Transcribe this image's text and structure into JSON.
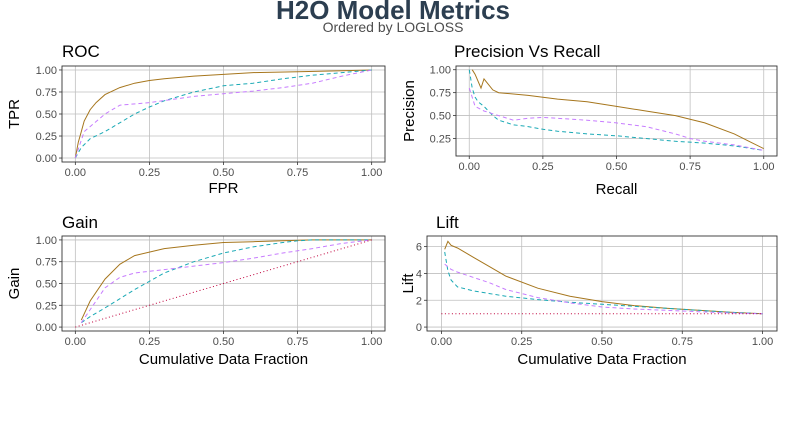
{
  "title": "H2O Model Metrics",
  "subtitle": "Ordered by LOGLOSS",
  "colors": {
    "model_1": "#a6761d",
    "model_2": "#1aa9b5",
    "model_3": "#c77cff",
    "baseline": "#c0003c",
    "title": "#2c3e50"
  },
  "chart_data": [
    {
      "type": "line",
      "title": "ROC",
      "xlabel": "FPR",
      "ylabel": "TPR",
      "xlim": [
        0,
        1
      ],
      "ylim": [
        0,
        1
      ],
      "x_ticks": [
        "0.00",
        "0.25",
        "0.50",
        "0.75",
        "1.00"
      ],
      "y_ticks": [
        "0.00",
        "0.25",
        "0.50",
        "0.75",
        "1.00"
      ],
      "grid": true,
      "series": [
        {
          "style": "solid",
          "color": "#a6761d",
          "x": [
            0,
            0.01,
            0.02,
            0.03,
            0.05,
            0.07,
            0.1,
            0.15,
            0.2,
            0.25,
            0.3,
            0.4,
            0.5,
            0.6,
            0.75,
            0.9,
            1.0
          ],
          "y": [
            0,
            0.18,
            0.3,
            0.42,
            0.55,
            0.63,
            0.72,
            0.8,
            0.85,
            0.88,
            0.9,
            0.93,
            0.95,
            0.97,
            0.98,
            0.99,
            1.0
          ]
        },
        {
          "style": "dashed",
          "color": "#1aa9b5",
          "x": [
            0,
            0.02,
            0.05,
            0.1,
            0.15,
            0.2,
            0.25,
            0.3,
            0.35,
            0.4,
            0.5,
            0.6,
            0.7,
            0.8,
            0.9,
            1.0
          ],
          "y": [
            0,
            0.12,
            0.22,
            0.3,
            0.4,
            0.5,
            0.58,
            0.65,
            0.7,
            0.75,
            0.82,
            0.85,
            0.9,
            0.94,
            0.97,
            1.0
          ]
        },
        {
          "style": "dashed",
          "color": "#c77cff",
          "x": [
            0,
            0.03,
            0.1,
            0.15,
            0.25,
            0.4,
            0.5,
            0.6,
            0.7,
            0.8,
            0.9,
            1.0
          ],
          "y": [
            0,
            0.3,
            0.5,
            0.6,
            0.63,
            0.7,
            0.73,
            0.76,
            0.8,
            0.85,
            0.93,
            1.0
          ]
        }
      ]
    },
    {
      "type": "line",
      "title": "Precision Vs Recall",
      "xlabel": "Recall",
      "ylabel": "Precision",
      "xlim": [
        0,
        1
      ],
      "ylim": [
        0.1,
        1
      ],
      "x_ticks": [
        "0.00",
        "0.25",
        "0.50",
        "0.75",
        "1.00"
      ],
      "y_ticks": [
        "0.25",
        "0.50",
        "0.75",
        "1.00"
      ],
      "y_tick_values": [
        0.25,
        0.5,
        0.75,
        1.0
      ],
      "grid": true,
      "series": [
        {
          "style": "solid",
          "color": "#a6761d",
          "x": [
            0.01,
            0.02,
            0.04,
            0.05,
            0.08,
            0.1,
            0.2,
            0.3,
            0.4,
            0.5,
            0.6,
            0.7,
            0.8,
            0.9,
            0.95,
            1.0
          ],
          "y": [
            1.0,
            0.95,
            0.8,
            0.9,
            0.78,
            0.75,
            0.72,
            0.68,
            0.65,
            0.6,
            0.55,
            0.5,
            0.42,
            0.3,
            0.22,
            0.14
          ]
        },
        {
          "style": "dashed",
          "color": "#1aa9b5",
          "x": [
            0.0,
            0.01,
            0.02,
            0.03,
            0.05,
            0.08,
            0.1,
            0.15,
            0.2,
            0.25,
            0.3,
            0.4,
            0.5,
            0.6,
            0.7,
            0.8,
            0.9,
            1.0
          ],
          "y": [
            1.0,
            0.8,
            0.7,
            0.65,
            0.6,
            0.5,
            0.45,
            0.4,
            0.38,
            0.35,
            0.33,
            0.3,
            0.28,
            0.25,
            0.22,
            0.2,
            0.17,
            0.12
          ]
        },
        {
          "style": "dashed",
          "color": "#c77cff",
          "x": [
            0.0,
            0.02,
            0.05,
            0.1,
            0.15,
            0.2,
            0.25,
            0.3,
            0.4,
            0.5,
            0.6,
            0.7,
            0.75,
            0.8,
            0.9,
            1.0
          ],
          "y": [
            0.8,
            0.6,
            0.55,
            0.5,
            0.45,
            0.47,
            0.48,
            0.47,
            0.45,
            0.42,
            0.38,
            0.3,
            0.25,
            0.22,
            0.18,
            0.12
          ]
        }
      ]
    },
    {
      "type": "line",
      "title": "Gain",
      "xlabel": "Cumulative Data Fraction",
      "ylabel": "Gain",
      "xlim": [
        0,
        1
      ],
      "ylim": [
        0,
        1
      ],
      "x_ticks": [
        "0.00",
        "0.25",
        "0.50",
        "0.75",
        "1.00"
      ],
      "y_ticks": [
        "0.00",
        "0.25",
        "0.50",
        "0.75",
        "1.00"
      ],
      "grid": true,
      "series": [
        {
          "style": "solid",
          "color": "#a6761d",
          "x": [
            0.02,
            0.05,
            0.1,
            0.15,
            0.2,
            0.3,
            0.4,
            0.5,
            0.6,
            0.7,
            0.8,
            0.9,
            1.0
          ],
          "y": [
            0.08,
            0.3,
            0.55,
            0.72,
            0.82,
            0.9,
            0.94,
            0.97,
            0.98,
            0.99,
            1.0,
            1.0,
            1.0
          ]
        },
        {
          "style": "dashed",
          "color": "#1aa9b5",
          "x": [
            0.02,
            0.05,
            0.1,
            0.2,
            0.3,
            0.4,
            0.5,
            0.6,
            0.7,
            0.75,
            0.8,
            0.9,
            1.0
          ],
          "y": [
            0.05,
            0.12,
            0.22,
            0.43,
            0.62,
            0.75,
            0.85,
            0.92,
            0.97,
            0.99,
            1.0,
            1.0,
            1.0
          ]
        },
        {
          "style": "dashed",
          "color": "#c77cff",
          "x": [
            0.02,
            0.05,
            0.1,
            0.15,
            0.2,
            0.3,
            0.4,
            0.5,
            0.6,
            0.7,
            0.8,
            0.9,
            1.0
          ],
          "y": [
            0.05,
            0.2,
            0.45,
            0.57,
            0.62,
            0.66,
            0.7,
            0.74,
            0.79,
            0.85,
            0.9,
            0.96,
            1.0
          ]
        },
        {
          "style": "dotted",
          "color": "#c0003c",
          "x": [
            0.0,
            1.0
          ],
          "y": [
            0.0,
            1.0
          ]
        }
      ]
    },
    {
      "type": "line",
      "title": "Lift",
      "xlabel": "Cumulative Data Fraction",
      "ylabel": "Lift",
      "xlim": [
        0,
        1
      ],
      "ylim": [
        0,
        6.5
      ],
      "x_ticks": [
        "0.00",
        "0.25",
        "0.50",
        "0.75",
        "1.00"
      ],
      "y_ticks": [
        "0",
        "2",
        "4",
        "6"
      ],
      "y_tick_values": [
        0,
        2,
        4,
        6
      ],
      "grid": true,
      "series": [
        {
          "style": "solid",
          "color": "#a6761d",
          "x": [
            0.01,
            0.02,
            0.03,
            0.05,
            0.1,
            0.15,
            0.2,
            0.3,
            0.4,
            0.5,
            0.6,
            0.7,
            0.8,
            0.9,
            1.0
          ],
          "y": [
            5.8,
            6.4,
            6.1,
            5.9,
            5.2,
            4.5,
            3.8,
            2.9,
            2.3,
            1.9,
            1.6,
            1.4,
            1.25,
            1.1,
            1.0
          ]
        },
        {
          "style": "dashed",
          "color": "#1aa9b5",
          "x": [
            0.01,
            0.02,
            0.03,
            0.05,
            0.1,
            0.15,
            0.2,
            0.3,
            0.4,
            0.5,
            0.6,
            0.7,
            0.8,
            0.9,
            1.0
          ],
          "y": [
            5.6,
            4.2,
            3.5,
            3.0,
            2.7,
            2.5,
            2.3,
            2.05,
            1.85,
            1.7,
            1.55,
            1.4,
            1.25,
            1.1,
            1.0
          ]
        },
        {
          "style": "dashed",
          "color": "#c77cff",
          "x": [
            0.01,
            0.03,
            0.05,
            0.1,
            0.15,
            0.2,
            0.3,
            0.4,
            0.5,
            0.6,
            0.7,
            0.8,
            0.9,
            1.0
          ],
          "y": [
            4.7,
            4.3,
            4.1,
            3.7,
            3.3,
            2.8,
            2.2,
            1.8,
            1.5,
            1.35,
            1.25,
            1.15,
            1.05,
            1.0
          ]
        },
        {
          "style": "dotted",
          "color": "#c0003c",
          "x": [
            0.0,
            1.0
          ],
          "y": [
            1.0,
            1.0
          ]
        }
      ]
    }
  ]
}
